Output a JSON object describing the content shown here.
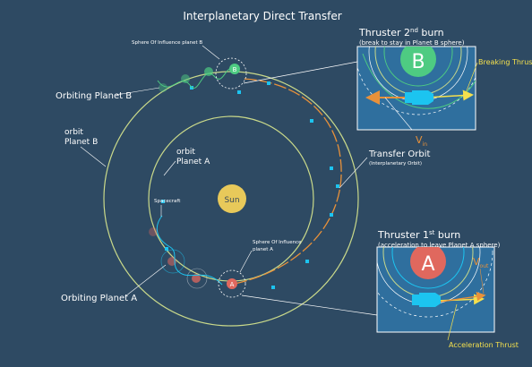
{
  "title": "Interplanetary Direct Transfer",
  "labels": {
    "soi_b": "Sphere Of Influence planet B",
    "orbiting_b": "Orbiting Planet B",
    "orbit_b_1": "orbit",
    "orbit_b_2": "Planet B",
    "orbit_a_1": "orbit",
    "orbit_a_2": "Planet A",
    "sun": "Sun",
    "spacecraft": "Spacecraft",
    "soi_a_1": "Sphere Of Influence",
    "soi_a_2": "planet A",
    "orbiting_a": "Orbiting Planet A",
    "transfer_orbit": "Transfer Orbit",
    "transfer_orbit_sub": "(Interplanetary Orbit)"
  },
  "planets": {
    "a": "A",
    "b": "B"
  },
  "burn2": {
    "title_pre": "Thruster 2",
    "title_sup": "nd",
    "title_post": " burn",
    "subtitle": "(break to stay in Planet B sphere)",
    "thrust_label": "Breaking Thrust",
    "v_label": "V",
    "v_sub": "in"
  },
  "burn1": {
    "title_pre": "Thruster 1",
    "title_sup": "st",
    "title_post": " burn",
    "subtitle": "(acceleration to leave Planet A sphere)",
    "thrust_label": "Acceleration Thrust",
    "v_label": "V",
    "v_sub": "out"
  },
  "colors": {
    "background": "#2e4a63",
    "orbit_line": "#c9d98a",
    "transfer": "#e8913a",
    "sun": "#e8c95a",
    "planet_a": "#e0685e",
    "planet_b": "#4ecb82",
    "panel": "#2f6f9e",
    "spacecraft": "#1cc4f0",
    "thrust_label": "#f4e04d"
  }
}
